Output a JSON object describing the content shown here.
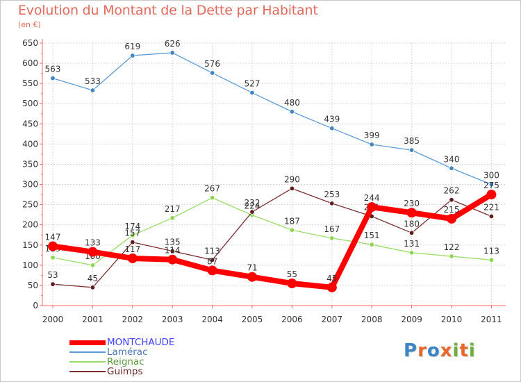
{
  "header": {
    "title": "Evolution du Montant de la Dette par Habitant",
    "subtitle": "(en €)"
  },
  "logo": {
    "text": "Proxiti",
    "colors": [
      "#3a84c4",
      "#e8682c",
      "#3a84c4",
      "#e8682c",
      "#6bb03c",
      "#e8682c",
      "#6bb03c"
    ]
  },
  "chart_data": {
    "type": "line",
    "title": "Evolution du Montant de la Dette par Habitant",
    "ylabel": "(en €)",
    "x": [
      "2000",
      "2001",
      "2002",
      "2003",
      "2004",
      "2005",
      "2006",
      "2007",
      "2008",
      "2009",
      "2010",
      "2011"
    ],
    "yticks": [
      "0",
      "50",
      "100",
      "150",
      "200",
      "250",
      "300",
      "350",
      "400",
      "450",
      "500",
      "550",
      "600",
      "650"
    ],
    "ylim": [
      0,
      650
    ],
    "grid": true,
    "legend_position": "bottom-left",
    "series": [
      {
        "name": "MONTCHAUDE",
        "color": "#ff0000",
        "values": [
          147,
          133,
          117,
          114,
          87,
          71,
          55,
          45,
          244,
          230,
          215,
          275
        ],
        "labels": [
          "147",
          "133",
          "117",
          "114",
          "87",
          "71",
          "55",
          "45",
          "244",
          "230",
          "215",
          "275"
        ]
      },
      {
        "name": "Lamérac",
        "color": "#5b9bd5",
        "values": [
          563,
          533,
          619,
          626,
          576,
          527,
          480,
          439,
          399,
          385,
          340,
          300
        ],
        "labels": [
          "563",
          "533",
          "619",
          "626",
          "576",
          "527",
          "480",
          "439",
          "399",
          "385",
          "340",
          "300"
        ]
      },
      {
        "name": "Reignac",
        "color": "#99dd66",
        "values": [
          119,
          100,
          174,
          217,
          267,
          224,
          187,
          167,
          151,
          131,
          122,
          113
        ],
        "labels": [
          "119",
          "100",
          "174",
          "217",
          "267",
          "224",
          "187",
          "167",
          "151",
          "131",
          "122",
          "113"
        ]
      },
      {
        "name": "Guimps",
        "color": "#7a2e2e",
        "values": [
          53,
          45,
          157,
          135,
          113,
          232,
          290,
          253,
          221,
          180,
          262,
          221
        ],
        "labels": [
          "53",
          "45",
          "157",
          "135",
          "113",
          "232",
          "290",
          "253",
          "221",
          "180",
          "262",
          "221"
        ]
      }
    ]
  }
}
